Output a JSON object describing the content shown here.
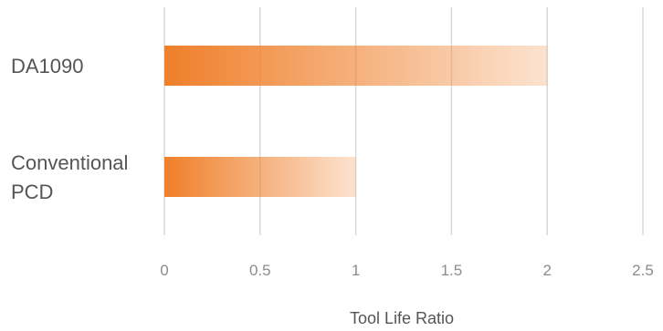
{
  "chart_data": {
    "type": "bar",
    "orientation": "horizontal",
    "categories": [
      "DA1090",
      "Conventional PCD"
    ],
    "category_lines": [
      [
        "DA1090"
      ],
      [
        "Conventional",
        "PCD"
      ]
    ],
    "values": [
      2.0,
      1.0
    ],
    "xlabel": "Tool Life Ratio",
    "xlim": [
      0,
      2.5
    ],
    "ticks": [
      0,
      0.5,
      1,
      1.5,
      2,
      2.5
    ],
    "tick_labels": [
      "0",
      "0.5",
      "1",
      "1.5",
      "2",
      "2.5"
    ],
    "grid": "vertical",
    "bar_color": "#ef7f2a",
    "legend": "none"
  }
}
